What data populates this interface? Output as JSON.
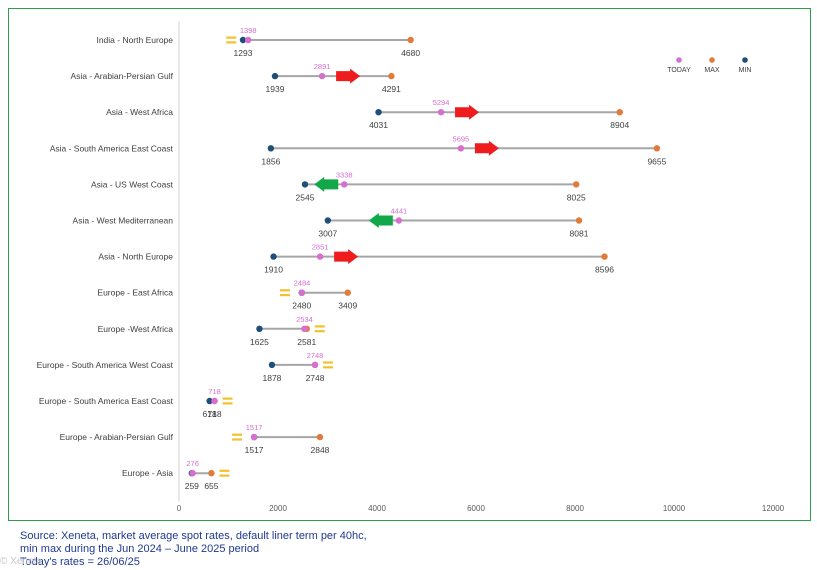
{
  "chart_data": {
    "type": "dumbbell",
    "title": "",
    "xlabel": "",
    "ylabel": "",
    "xlim": [
      0,
      12000
    ],
    "xticks": [
      0,
      2000,
      4000,
      6000,
      8000,
      10000,
      12000
    ],
    "legend": {
      "position": "top-right",
      "entries": [
        {
          "name": "TODAY",
          "color": "#d56fd0"
        },
        {
          "name": "MAX",
          "color": "#e07b39"
        },
        {
          "name": "MIN",
          "color": "#1f4e79"
        }
      ]
    },
    "colors": {
      "today": "#d56fd0",
      "max": "#e07b39",
      "min": "#1f4e79",
      "line": "#a6a6a6",
      "up": "#ee1c1c",
      "down": "#12a84a",
      "flat": "#f2c12e",
      "label": "#404040",
      "today_label": "#d56fd0"
    },
    "routes": [
      {
        "name": "India - North Europe",
        "min": 1293,
        "max": 4680,
        "today": 1398,
        "trend": "flat"
      },
      {
        "name": "Asia - Arabian-Persian Gulf",
        "min": 1939,
        "max": 4291,
        "today": 2891,
        "trend": "up"
      },
      {
        "name": "Asia - West Africa",
        "min": 4031,
        "max": 8904,
        "today": 5294,
        "trend": "up"
      },
      {
        "name": "Asia - South America East Coast",
        "min": 1856,
        "max": 9655,
        "today": 5695,
        "trend": "up"
      },
      {
        "name": "Asia - US West Coast",
        "min": 2545,
        "max": 8025,
        "today": 3338,
        "trend": "down"
      },
      {
        "name": "Asia - West Mediterranean",
        "min": 3007,
        "max": 8081,
        "today": 4441,
        "trend": "down"
      },
      {
        "name": "Asia - North Europe",
        "min": 1910,
        "max": 8596,
        "today": 2851,
        "trend": "up"
      },
      {
        "name": "Europe - East Africa",
        "min": 2480,
        "max": 3409,
        "today": 2484,
        "trend": "flat"
      },
      {
        "name": "Europe -West Africa",
        "min": 1625,
        "max": 2581,
        "today": 2534,
        "trend": "flat"
      },
      {
        "name": "Europe - South America West Coast",
        "min": 1878,
        "max": 2748,
        "today": 2748,
        "trend": "flat"
      },
      {
        "name": "Europe - South America East Coast",
        "min": 618,
        "max": 718,
        "today": 718,
        "trend": "flat"
      },
      {
        "name": "Europe - Arabian-Persian Gulf",
        "min": 1517,
        "max": 2848,
        "today": 1517,
        "trend": "flat"
      },
      {
        "name": "Europe - Asia",
        "min": 259,
        "max": 655,
        "today": 276,
        "trend": "flat"
      }
    ]
  },
  "footer": {
    "source": "Source: Xeneta, market average spot rates, default liner term per 40hc,",
    "period": "min max during the Jun 2024 – June 2025 period",
    "today": "Today's rates = 26/06/25"
  },
  "watermark": "© Xeneta"
}
